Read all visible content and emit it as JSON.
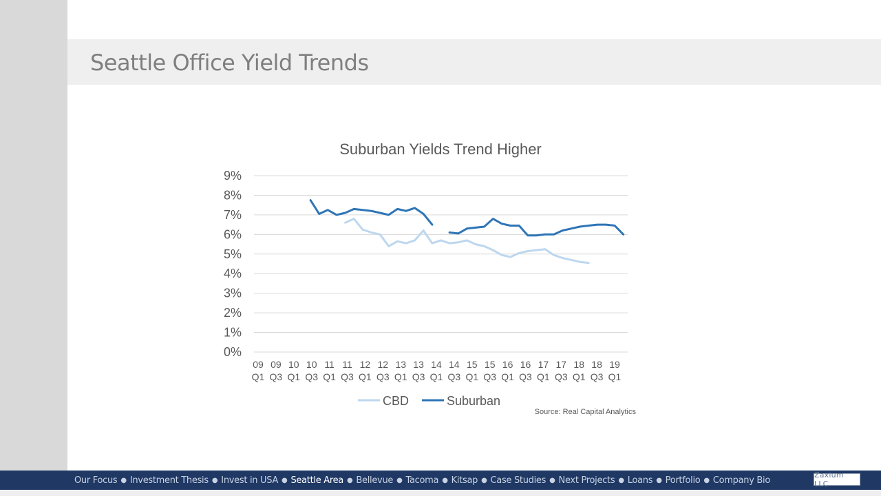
{
  "page": {
    "title": "Seattle Office Yield Trends"
  },
  "chart_data": {
    "type": "line",
    "title": "Suburban Yields Trend Higher",
    "xlabel": "",
    "ylabel": "",
    "ylim": [
      0,
      9
    ],
    "yticks": [
      "0%",
      "1%",
      "2%",
      "3%",
      "4%",
      "5%",
      "6%",
      "7%",
      "8%",
      "9%"
    ],
    "x_tick_labels": [
      {
        "year": "09",
        "q": "Q1"
      },
      {
        "year": "09",
        "q": "Q3"
      },
      {
        "year": "10",
        "q": "Q1"
      },
      {
        "year": "10",
        "q": "Q3"
      },
      {
        "year": "11",
        "q": "Q1"
      },
      {
        "year": "11",
        "q": "Q3"
      },
      {
        "year": "12",
        "q": "Q1"
      },
      {
        "year": "12",
        "q": "Q3"
      },
      {
        "year": "13",
        "q": "Q1"
      },
      {
        "year": "13",
        "q": "Q3"
      },
      {
        "year": "14",
        "q": "Q1"
      },
      {
        "year": "14",
        "q": "Q3"
      },
      {
        "year": "15",
        "q": "Q1"
      },
      {
        "year": "15",
        "q": "Q3"
      },
      {
        "year": "16",
        "q": "Q1"
      },
      {
        "year": "16",
        "q": "Q3"
      },
      {
        "year": "17",
        "q": "Q1"
      },
      {
        "year": "17",
        "q": "Q3"
      },
      {
        "year": "18",
        "q": "Q1"
      },
      {
        "year": "18",
        "q": "Q3"
      },
      {
        "year": "19",
        "q": "Q1"
      }
    ],
    "series": [
      {
        "name": "CBD",
        "color": "#bdd7ee",
        "start_index": 10,
        "values": [
          6.6,
          6.8,
          6.25,
          6.1,
          6.0,
          5.4,
          5.65,
          5.55,
          5.7,
          6.2,
          5.55,
          5.7,
          5.55,
          5.6,
          5.7,
          5.5,
          5.4,
          5.2,
          4.95,
          4.85,
          5.05,
          5.15,
          5.2,
          5.25,
          4.95,
          4.8,
          4.7,
          4.6,
          4.55
        ]
      },
      {
        "name": "Suburban",
        "color": "#2e75b6",
        "start_index": 6,
        "values": [
          7.75,
          7.05,
          7.25,
          7.0,
          7.1,
          7.3,
          7.25,
          7.2,
          7.1,
          7.0,
          7.3,
          7.2,
          7.35,
          7.05,
          6.5,
          null,
          6.1,
          6.05,
          6.3,
          6.35,
          6.4,
          6.8,
          6.55,
          6.45,
          6.45,
          5.95,
          5.95,
          6.0,
          6.0,
          6.2,
          6.3,
          6.4,
          6.45,
          6.5,
          6.5,
          6.45,
          6.0
        ]
      }
    ],
    "total_quarters": 43,
    "legend": [
      "CBD",
      "Suburban"
    ],
    "legend_position": "bottom",
    "grid": true,
    "source": "Source: Real Capital Analytics"
  },
  "nav": {
    "items": [
      {
        "label": "Our Focus",
        "active": false
      },
      {
        "label": "Investment Thesis",
        "active": false
      },
      {
        "label": "Invest in USA",
        "active": false
      },
      {
        "label": "Seattle Area",
        "active": true
      },
      {
        "label": "Bellevue",
        "active": false
      },
      {
        "label": "Tacoma",
        "active": false
      },
      {
        "label": "Kitsap",
        "active": false
      },
      {
        "label": "Case Studies",
        "active": false
      },
      {
        "label": "Next Projects",
        "active": false
      },
      {
        "label": "Loans",
        "active": false
      },
      {
        "label": "Portfolio",
        "active": false
      },
      {
        "label": "Company Bio",
        "active": false
      }
    ],
    "separator": "●"
  },
  "logo": {
    "text": "Zaxium LLC"
  },
  "colors": {
    "nav_bg": "#1f3864",
    "cbd": "#bdd7ee",
    "suburban": "#2e75b6"
  }
}
